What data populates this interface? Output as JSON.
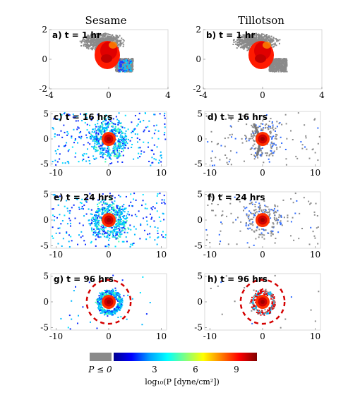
{
  "column_titles": [
    "Sesame",
    "Tillotson"
  ],
  "chart_data": [
    {
      "panel": "a) t = 1 hr",
      "type": "scatter",
      "column": "Sesame",
      "xlim": [
        -4,
        4
      ],
      "ylim": [
        -2,
        2
      ],
      "xticks": [
        -4,
        0,
        4
      ],
      "yticks": [
        -2,
        0,
        2
      ]
    },
    {
      "panel": "b) t = 1 hr",
      "type": "scatter",
      "column": "Tillotson",
      "xlim": [
        -4,
        4
      ],
      "ylim": [
        -2,
        2
      ],
      "xticks": [
        -4,
        0,
        4
      ],
      "yticks": [
        -2,
        0,
        2
      ]
    },
    {
      "panel": "c) t = 16 hrs",
      "type": "scatter",
      "column": "Sesame",
      "xlim": [
        -11,
        11
      ],
      "ylim": [
        -5.5,
        5.5
      ],
      "xticks": [
        -10,
        0,
        10
      ],
      "yticks": [
        -5,
        0,
        5
      ]
    },
    {
      "panel": "d) t = 16 hrs",
      "type": "scatter",
      "column": "Tillotson",
      "xlim": [
        -11,
        11
      ],
      "ylim": [
        -5.5,
        5.5
      ],
      "xticks": [
        -10,
        0,
        10
      ],
      "yticks": [
        -5,
        0,
        5
      ]
    },
    {
      "panel": "e) t = 24 hrs",
      "type": "scatter",
      "column": "Sesame",
      "xlim": [
        -11,
        11
      ],
      "ylim": [
        -5.5,
        5.5
      ],
      "xticks": [
        -10,
        0,
        10
      ],
      "yticks": [
        -5,
        0,
        5
      ]
    },
    {
      "panel": "f) t = 24 hrs",
      "type": "scatter",
      "column": "Tillotson",
      "xlim": [
        -11,
        11
      ],
      "ylim": [
        -5.5,
        5.5
      ],
      "xticks": [
        -10,
        0,
        10
      ],
      "yticks": [
        -5,
        0,
        5
      ]
    },
    {
      "panel": "g) t = 96 hrs",
      "type": "scatter",
      "column": "Sesame",
      "xlim": [
        -11,
        11
      ],
      "ylim": [
        -5.5,
        5.5
      ],
      "xticks": [
        -10,
        0,
        10
      ],
      "yticks": [
        -5,
        0,
        5
      ],
      "circle_radius": 2.2
    },
    {
      "panel": "h) t = 96 hrs",
      "type": "scatter",
      "column": "Tillotson",
      "xlim": [
        -11,
        11
      ],
      "ylim": [
        -5.5,
        5.5
      ],
      "xticks": [
        -10,
        0,
        10
      ],
      "yticks": [
        -5,
        0,
        5
      ],
      "circle_radius": 2.2
    }
  ],
  "colorbar": {
    "gray_label": "P ≤ 0",
    "ticks": [
      3,
      6,
      9
    ],
    "range": [
      0,
      10.5
    ],
    "label": "log₁₀(P [dyne/cm²])",
    "colors": [
      "#00008f",
      "#0000ff",
      "#00a0ff",
      "#00ffff",
      "#80ff80",
      "#ffff00",
      "#ff8000",
      "#ff0000",
      "#800000"
    ]
  }
}
